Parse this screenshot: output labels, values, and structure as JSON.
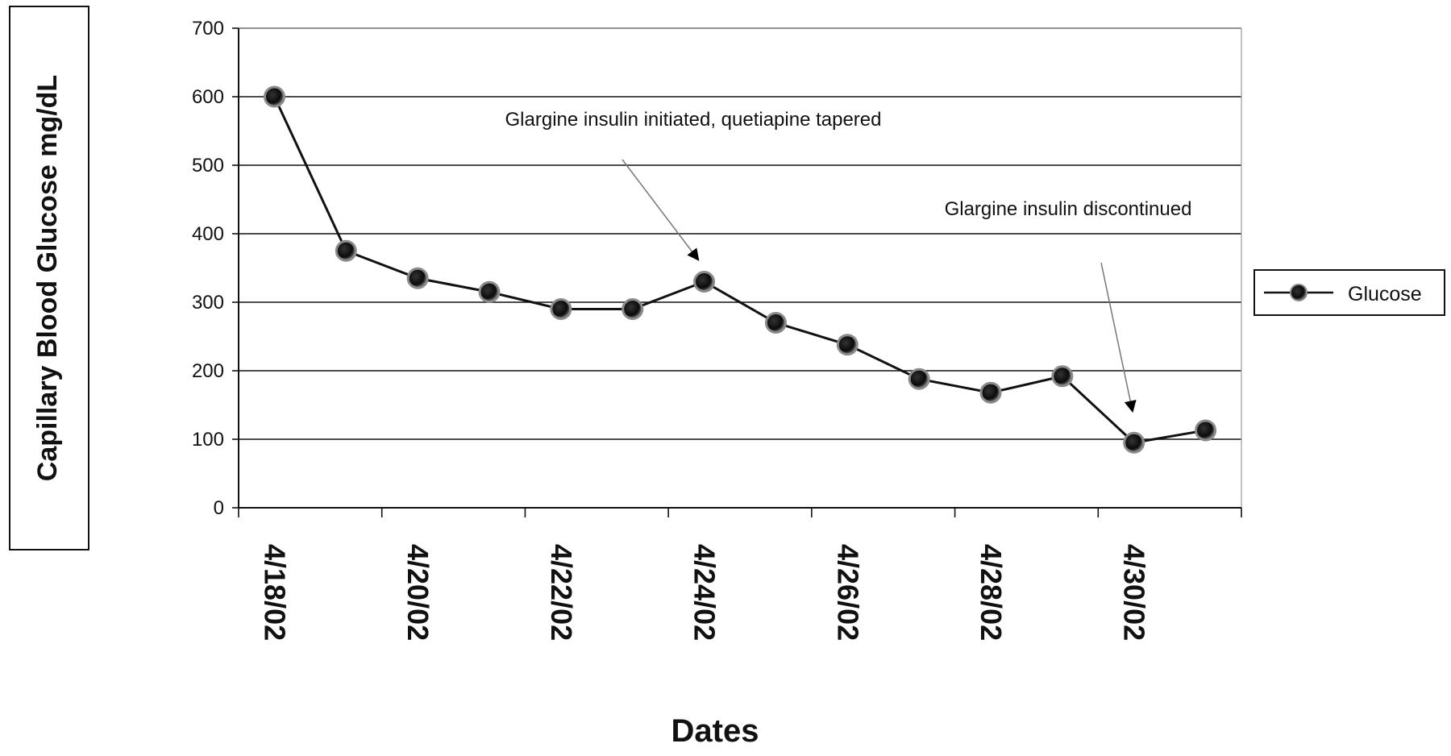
{
  "chart_data": {
    "type": "line",
    "title": "",
    "xlabel": "Dates",
    "ylabel": "Capillary Blood Glucose mg/dL",
    "ylim": [
      0,
      700
    ],
    "y_ticks": [
      "0",
      "100",
      "200",
      "300",
      "400",
      "500",
      "600",
      "700"
    ],
    "x_tick_labels": [
      "4/18/02",
      "4/20/02",
      "4/22/02",
      "4/24/02",
      "4/26/02",
      "4/28/02",
      "4/30/02"
    ],
    "grid": "horizontal",
    "legend_position": "right",
    "x": [
      "4/18/02",
      "4/19/02",
      "4/20/02",
      "4/21/02",
      "4/22/02",
      "4/23/02",
      "4/24/02",
      "4/25/02",
      "4/26/02",
      "4/27/02",
      "4/28/02",
      "4/29/02",
      "4/30/02",
      "5/1/02"
    ],
    "series": [
      {
        "name": "Glucose",
        "color": "#111111",
        "values": [
          600,
          375,
          335,
          315,
          290,
          290,
          330,
          270,
          238,
          188,
          168,
          192,
          95,
          113
        ]
      }
    ],
    "annotations": [
      {
        "text": "Glargine insulin initiated, quetiapine tapered",
        "points_to": "4/24/02"
      },
      {
        "text": "Glargine insulin discontinued",
        "points_to": "4/30/02"
      }
    ]
  }
}
